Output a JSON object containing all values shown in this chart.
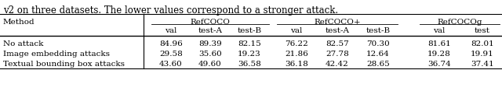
{
  "caption": "v2 on three datasets. The lower values correspond to a stronger attack.",
  "col_groups": [
    {
      "name": "RefCOCO",
      "subcols": [
        "val",
        "test-A",
        "test-B"
      ],
      "span": [
        0,
        1,
        2
      ]
    },
    {
      "name": "RefCOCO+",
      "subcols": [
        "val",
        "test-A",
        "test-B"
      ],
      "span": [
        3,
        4,
        5
      ]
    },
    {
      "name": "RefCOCOg",
      "subcols": [
        "val",
        "test"
      ],
      "span": [
        6,
        7
      ]
    }
  ],
  "row_header": "Method",
  "rows": [
    {
      "name": "No attack",
      "values": [
        "84.96",
        "89.39",
        "82.15",
        "76.22",
        "82.57",
        "70.30",
        "81.61",
        "82.01"
      ]
    },
    {
      "name": "Image embedding attacks",
      "values": [
        "29.58",
        "35.60",
        "19.23",
        "21.86",
        "27.78",
        "12.64",
        "19.28",
        "19.91"
      ]
    },
    {
      "name": "Textual bounding box attacks",
      "values": [
        "43.60",
        "49.60",
        "36.58",
        "36.18",
        "42.42",
        "28.65",
        "36.74",
        "37.41"
      ]
    }
  ],
  "bg_color": "#ffffff",
  "text_color": "#000000",
  "font_size": 7.5,
  "caption_font_size": 8.5,
  "figsize": [
    6.4,
    1.17
  ],
  "dpi": 100
}
